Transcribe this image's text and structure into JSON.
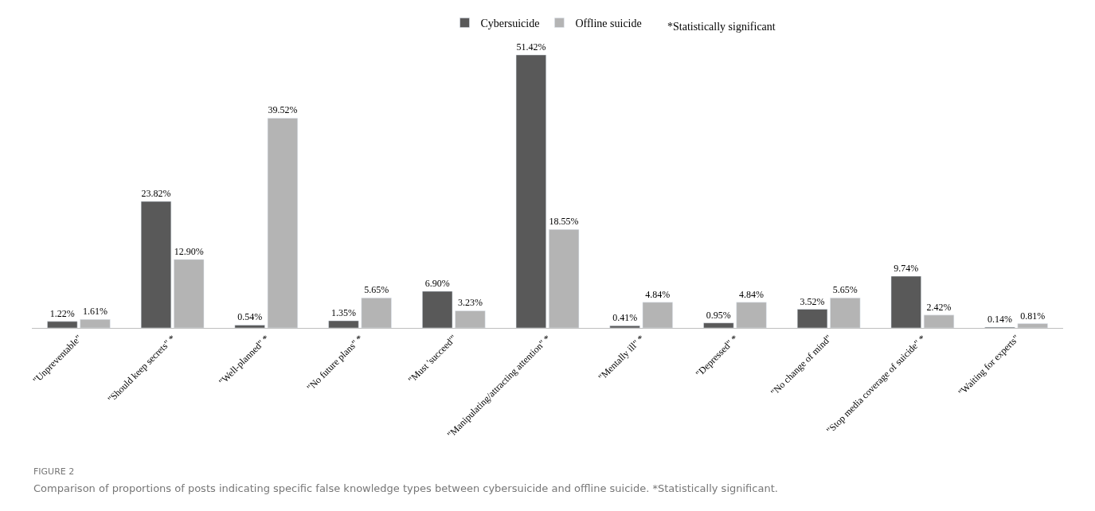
{
  "chart_data": {
    "type": "bar",
    "categories": [
      "\"Unpreventable\"",
      "\"Should keep secrets\" *",
      "\"Well-planned\" *",
      "\"No future plans\" *",
      "\"Must 'succeed'\"",
      "\"Manipulating/attracting attention\" *",
      "\"Mentally ill\" *",
      "\"Depressed\" *",
      "\"No change of mind\"",
      "\"Stop media coverage of suicide\" *",
      "\"Waiting for experts\""
    ],
    "series": [
      {
        "name": "Cybersuicide",
        "color": "#595959",
        "values": [
          1.22,
          23.82,
          0.54,
          1.35,
          6.9,
          51.42,
          0.41,
          0.95,
          3.52,
          9.74,
          0.14
        ],
        "value_labels": [
          "1.22%",
          "23.82%",
          "0.54%",
          "1.35%",
          "6.90%",
          "51.42%",
          "0.41%",
          "0.95%",
          "3.52%",
          "9.74%",
          "0.14%"
        ]
      },
      {
        "name": "Offline suicide",
        "color": "#b4b4b4",
        "values": [
          1.61,
          12.9,
          39.52,
          5.65,
          3.23,
          18.55,
          4.84,
          4.84,
          5.65,
          2.42,
          0.81
        ],
        "value_labels": [
          "1.61%",
          "12.90%",
          "39.52%",
          "5.65%",
          "3.23%",
          "18.55%",
          "4.84%",
          "4.84%",
          "5.65%",
          "2.42%",
          "0.81%"
        ]
      }
    ],
    "legend": "top",
    "annotations": [
      "*Statistically significant",
      "FIGURE 2",
      "Comparison of proportions of posts indicating specific false knowledge types between cybersuicide and offline suicide. *Statistically significant."
    ]
  }
}
